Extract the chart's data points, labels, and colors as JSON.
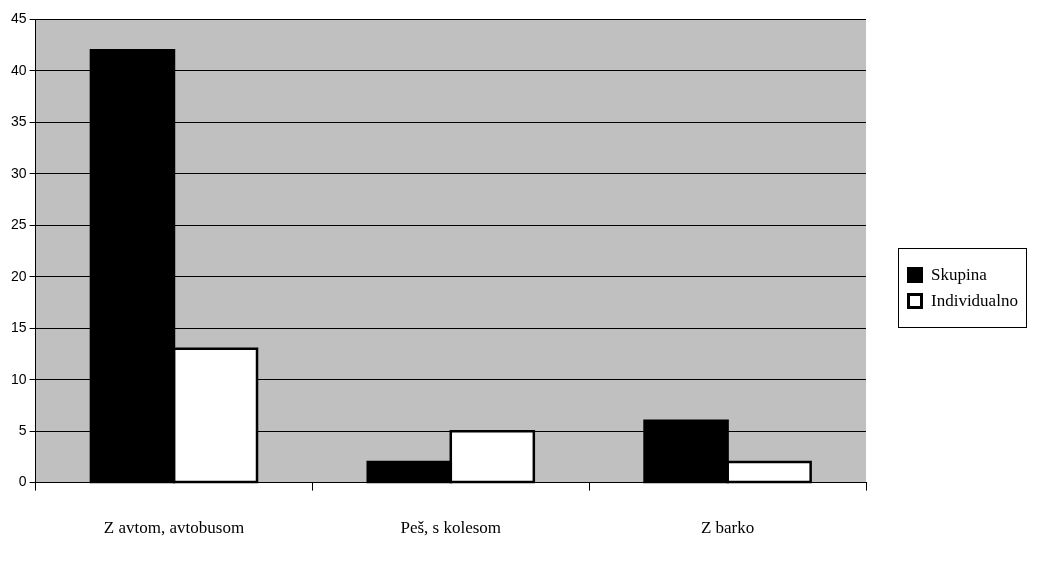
{
  "chart_data": {
    "type": "bar",
    "categories": [
      "Z avtom, avtobusom",
      "Peš, s kolesom",
      "Z barko"
    ],
    "series": [
      {
        "name": "Skupina",
        "color": "#000000",
        "values": [
          42,
          2,
          6
        ]
      },
      {
        "name": "Individualno",
        "color": "#ffffff",
        "values": [
          13,
          5,
          2
        ]
      }
    ],
    "ylim": [
      0,
      45
    ],
    "yticks": [
      0,
      5,
      10,
      15,
      20,
      25,
      30,
      35,
      40,
      45
    ],
    "grid": "y",
    "legend": "right"
  }
}
